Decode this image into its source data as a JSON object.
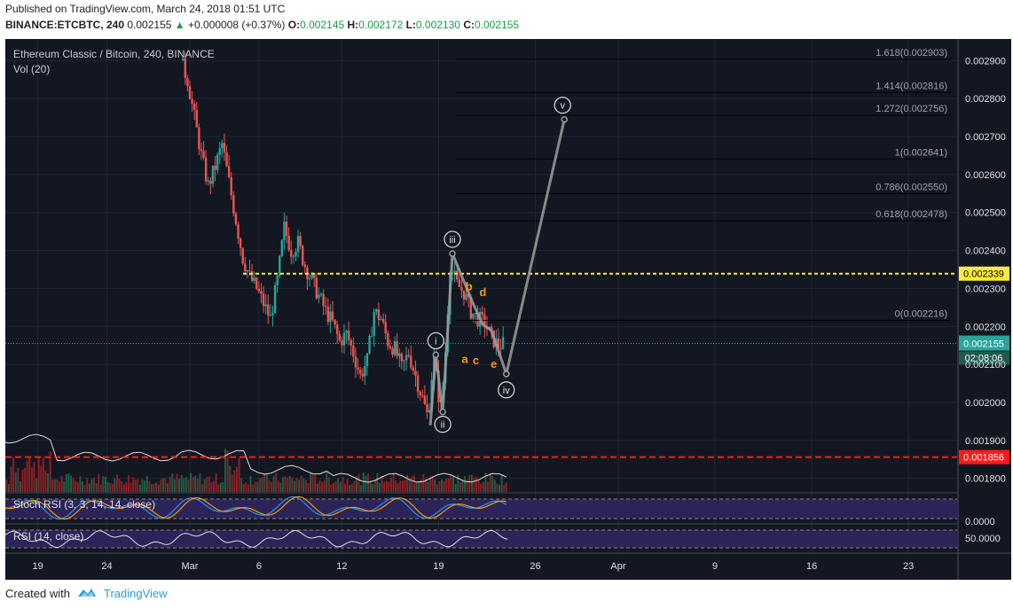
{
  "header": {
    "published": "Published on TradingView.com, March 24, 2018 01:51 UTC",
    "symbol": "BINANCE:ETCBTC, 240",
    "price": "0.002155",
    "change": "+0.000008 (+0.37%)",
    "o_label": "O:",
    "o_value": "0.002145",
    "h_label": "H:",
    "h_value": "0.002172",
    "l_label": "L:",
    "l_value": "0.002130",
    "c_label": "C:",
    "c_value": "0.002155"
  },
  "footer": {
    "created_with": "Created with",
    "brand": "TradingView"
  },
  "colors": {
    "background": "#131722",
    "up": "#26a69a",
    "down": "#ef5350",
    "yellow": "#ffeb3b",
    "red": "#ff1a1a",
    "wave": "#9e9e9e",
    "label_orange": "#ff9800"
  },
  "chart_data": {
    "type": "candlestick",
    "title": "Ethereum Classic / Bitcoin, 240, BINANCE",
    "volume_label": "Vol (20)",
    "y_ticks": [
      0.0029,
      0.0028,
      0.0027,
      0.0026,
      0.0025,
      0.0024,
      0.0023,
      0.0022,
      0.0021,
      0.002,
      0.0019,
      0.0018
    ],
    "y_tick_labels": [
      "0.002900",
      "0.002800",
      "0.002700",
      "0.002600",
      "0.002500",
      "0.002400",
      "0.002300",
      "0.002200",
      "0.002100",
      "0.002000",
      "0.001900",
      "0.001800"
    ],
    "ylim": [
      0.00177,
      0.00297
    ],
    "x_ticks": [
      "19",
      "24",
      "Mar",
      "6",
      "12",
      "19",
      "26",
      "Apr",
      "9",
      "16",
      "23"
    ],
    "x_tick_days": [
      -10,
      -5,
      1,
      6,
      12,
      19,
      26,
      32,
      39,
      46,
      53
    ],
    "fib_levels": [
      {
        "label": "1.618(0.002903)",
        "value": 0.002903
      },
      {
        "label": "1.414(0.002816)",
        "value": 0.002816
      },
      {
        "label": "1.272(0.002756)",
        "value": 0.002756
      },
      {
        "label": "1(0.002641)",
        "value": 0.002641
      },
      {
        "label": "0.786(0.002550)",
        "value": 0.00255
      },
      {
        "label": "0.618(0.002478)",
        "value": 0.002478
      },
      {
        "label": "0(0.002216)",
        "value": 0.002216
      }
    ],
    "horizontal_lines": [
      {
        "label": "0.002339",
        "value": 0.002339,
        "style": "yellow-dashed"
      },
      {
        "label": "0.001856",
        "value": 0.001856,
        "style": "red-dashed"
      }
    ],
    "current_price": {
      "label": "0.002155",
      "value": 0.002155,
      "countdown": "02:08:06"
    },
    "wave_points": [
      {
        "label": "i",
        "day": 18.8,
        "value": 0.002125
      },
      {
        "label": "ii",
        "day": 19.3,
        "value": 0.001975
      },
      {
        "label": "iii",
        "day": 20.0,
        "value": 0.002392
      },
      {
        "label": "iv",
        "day": 23.9,
        "value": 0.002075
      },
      {
        "label": "v",
        "day": 28.1,
        "value": 0.002745
      }
    ],
    "wave_path_days": [
      18.4,
      18.8,
      19.3,
      20.0,
      21.5,
      22.2,
      22.8,
      23.3,
      23.9,
      28.1
    ],
    "wave_path_values": [
      0.00194,
      0.002125,
      0.001975,
      0.002392,
      0.00226,
      0.002205,
      0.00219,
      0.00214,
      0.002075,
      0.002745
    ],
    "abcde": [
      {
        "label": "a",
        "day": 20.9,
        "value": 0.002115
      },
      {
        "label": "b",
        "day": 21.2,
        "value": 0.002307
      },
      {
        "label": "c",
        "day": 21.7,
        "value": 0.002112
      },
      {
        "label": "d",
        "day": 22.2,
        "value": 0.002292
      },
      {
        "label": "e",
        "day": 23.0,
        "value": 0.002102
      }
    ],
    "price_anchors_days": [
      0.5,
      1.0,
      1.5,
      2.0,
      2.5,
      3.0,
      3.5,
      4.0,
      4.5,
      5.0,
      5.5,
      6.0,
      6.5,
      7.0,
      7.5,
      8.0,
      8.5,
      9.0,
      9.5,
      10.0,
      10.5,
      11.0,
      11.5,
      12.0,
      12.5,
      13.0,
      13.5,
      14.0,
      14.5,
      15.0,
      15.5,
      16.0,
      16.5,
      17.0,
      17.5,
      18.0,
      18.4,
      18.8,
      19.3,
      19.6,
      20.0,
      20.5,
      21.0,
      21.5,
      22.0,
      22.5,
      23.0,
      23.5,
      24.0
    ],
    "price_anchors_values": [
      0.0029,
      0.00285,
      0.00275,
      0.00265,
      0.00257,
      0.00262,
      0.00268,
      0.00258,
      0.00248,
      0.00238,
      0.00233,
      0.0023,
      0.00226,
      0.00222,
      0.00232,
      0.00246,
      0.0024,
      0.00242,
      0.00236,
      0.00232,
      0.00228,
      0.00224,
      0.00221,
      0.00216,
      0.00218,
      0.00213,
      0.00207,
      0.00211,
      0.00224,
      0.00222,
      0.00216,
      0.00214,
      0.00209,
      0.00213,
      0.00207,
      0.00201,
      0.00196,
      0.002125,
      0.00198,
      0.00209,
      0.00236,
      0.00231,
      0.00229,
      0.00224,
      0.00222,
      0.00221,
      0.00217,
      0.00215,
      0.002155
    ],
    "indicators": [
      {
        "label": "Stoch RSI (3, 3, 14, 14, close)",
        "y_tick_labels": [
          "0.0000"
        ]
      },
      {
        "label": "RSI (14, close)",
        "y_tick_labels": [
          "50.0000"
        ]
      }
    ]
  }
}
